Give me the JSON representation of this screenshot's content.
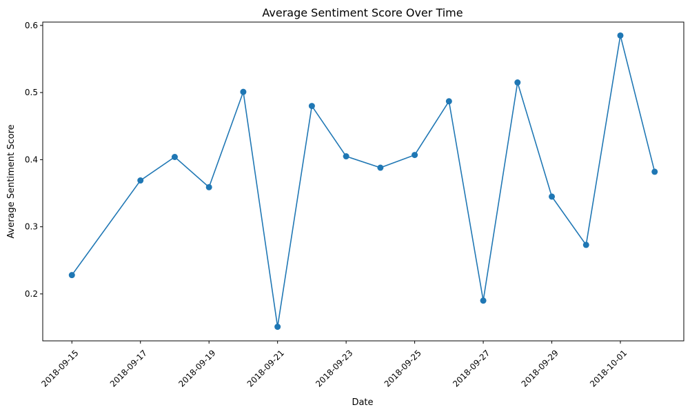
{
  "chart_data": {
    "type": "line",
    "title": "Average Sentiment Score Over Time",
    "xlabel": "Date",
    "ylabel": "Average Sentiment Score",
    "ylim": [
      0.13,
      0.605
    ],
    "yticks": [
      "0.2",
      "0.3",
      "0.4",
      "0.5",
      "0.6"
    ],
    "xticks": [
      "2018-09-15",
      "2018-09-17",
      "2018-09-19",
      "2018-09-21",
      "2018-09-23",
      "2018-09-25",
      "2018-09-27",
      "2018-09-29",
      "2018-10-01"
    ],
    "grid": false,
    "series": [
      {
        "name": "Average Sentiment Score",
        "color": "#1f77b4",
        "marker": "circle",
        "points": [
          {
            "x": "2018-09-15",
            "y": 0.228
          },
          {
            "x": "2018-09-17",
            "y": 0.369
          },
          {
            "x": "2018-09-18",
            "y": 0.404
          },
          {
            "x": "2018-09-19",
            "y": 0.359
          },
          {
            "x": "2018-09-20",
            "y": 0.501
          },
          {
            "x": "2018-09-21",
            "y": 0.151
          },
          {
            "x": "2018-09-22",
            "y": 0.48
          },
          {
            "x": "2018-09-23",
            "y": 0.405
          },
          {
            "x": "2018-09-24",
            "y": 0.388
          },
          {
            "x": "2018-09-25",
            "y": 0.407
          },
          {
            "x": "2018-09-26",
            "y": 0.487
          },
          {
            "x": "2018-09-27",
            "y": 0.19
          },
          {
            "x": "2018-09-28",
            "y": 0.515
          },
          {
            "x": "2018-09-29",
            "y": 0.345
          },
          {
            "x": "2018-09-30",
            "y": 0.273
          },
          {
            "x": "2018-10-01",
            "y": 0.585
          },
          {
            "x": "2018-10-02",
            "y": 0.382
          }
        ]
      }
    ]
  }
}
